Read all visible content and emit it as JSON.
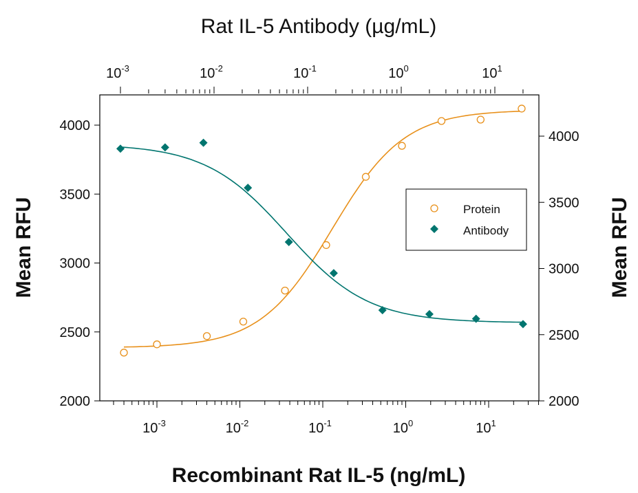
{
  "chart_data": {
    "type": "scatter",
    "top_title": "Rat IL-5 Antibody (µg/mL)",
    "xlabel": "Recombinant Rat IL-5 (ng/mL)",
    "ylabel_left": "Mean RFU",
    "ylabel_right": "Mean RFU",
    "x_scale": "log",
    "bottom_x_ticks": [
      "10",
      "10",
      "10",
      "10",
      "10"
    ],
    "bottom_x_exponents": [
      "-3",
      "-2",
      "-1",
      "0",
      "1"
    ],
    "bottom_x_values": [
      0.001,
      0.01,
      0.1,
      1,
      10
    ],
    "top_x_ticks": [
      "10",
      "10",
      "10",
      "10",
      "10"
    ],
    "top_x_exponents": [
      "-3",
      "-2",
      "-1",
      "0",
      "1"
    ],
    "top_x_values": [
      0.001,
      0.01,
      0.1,
      1,
      10
    ],
    "left_ylim": [
      2000,
      4200
    ],
    "left_y_ticks": [
      "2000",
      "2500",
      "3000",
      "3500",
      "4000"
    ],
    "right_ylim": [
      2000,
      4300
    ],
    "right_y_ticks": [
      "2000",
      "2500",
      "3000",
      "3500",
      "4000"
    ],
    "legend": {
      "position": "right",
      "items": [
        "Protein",
        "Antibody"
      ]
    },
    "series": [
      {
        "name": "Protein",
        "marker": "open-circle",
        "color": "#E8901A",
        "axis": "bottom-left",
        "x": [
          0.0004,
          0.001,
          0.004,
          0.011,
          0.035,
          0.11,
          0.33,
          0.9,
          2.7,
          8,
          25
        ],
        "y": [
          2350,
          2410,
          2470,
          2575,
          2800,
          3130,
          3625,
          3850,
          4030,
          4040,
          4120
        ],
        "fit": {
          "bottom": 2385,
          "top": 4110,
          "ec50": 0.13,
          "hill": 1.0
        }
      },
      {
        "name": "Antibody",
        "marker": "filled-diamond",
        "color": "#00756F",
        "axis": "top-right",
        "x": [
          0.001,
          0.003,
          0.0077,
          0.023,
          0.063,
          0.19,
          0.63,
          2,
          6.3,
          20
        ],
        "y": [
          3905,
          3915,
          3950,
          3610,
          3200,
          2965,
          2685,
          2655,
          2620,
          2580
        ],
        "fit": {
          "bottom": 2590,
          "top": 3940,
          "ec50": 0.06,
          "hill": 1.0
        }
      }
    ]
  }
}
